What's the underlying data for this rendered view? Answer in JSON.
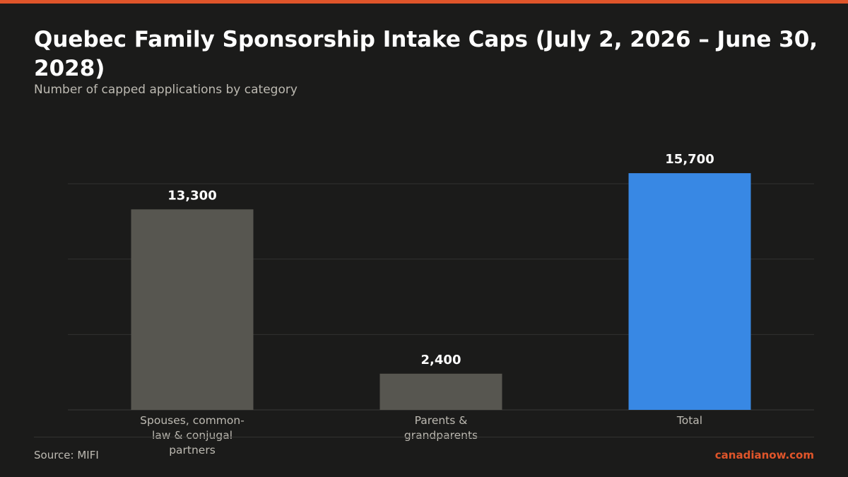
{
  "header": {
    "title": "Quebec Family Sponsorship Intake Caps (July 2, 2026 – June 30, 2028)",
    "subtitle": "Number of capped applications by category"
  },
  "footer": {
    "source": "Source: MIFI",
    "brand": "canadianow.com"
  },
  "colors": {
    "accent": "#e0552a",
    "bar_default": "#575650",
    "bar_highlight": "#3888e4",
    "background": "#1b1b1a"
  },
  "chart_data": {
    "type": "bar",
    "categories": [
      "Spouses, common-law & conjugal partners",
      "Parents & grandparents",
      "Total"
    ],
    "category_lines": [
      [
        "Spouses, common-",
        "law & conjugal",
        "partners"
      ],
      [
        "Parents &",
        "grandparents"
      ],
      [
        "Total"
      ]
    ],
    "values": [
      13300,
      2400,
      15700
    ],
    "value_labels": [
      "13,300",
      "2,400",
      "15,700"
    ],
    "highlight_index": 2,
    "ylim": [
      0,
      15000
    ],
    "grid": true,
    "title": "Quebec Family Sponsorship Intake Caps (July 2, 2026 – June 30, 2028)",
    "subtitle": "Number of capped applications by category",
    "xlabel": "",
    "ylabel": ""
  }
}
